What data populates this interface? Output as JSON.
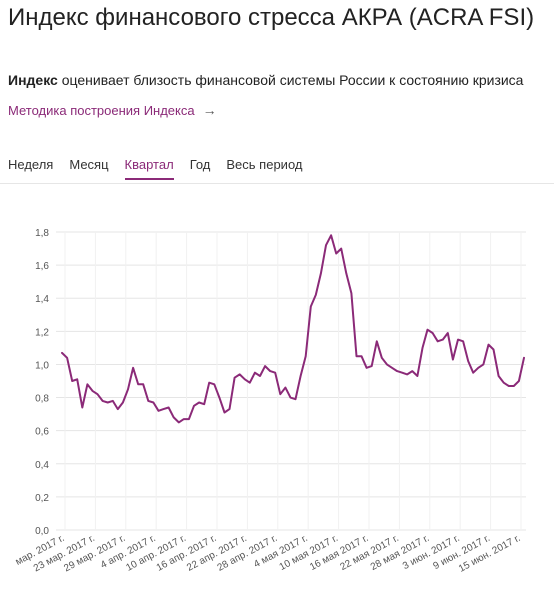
{
  "header": {
    "title": "Индекс финансового стресса АКРА (ACRA FSI)"
  },
  "intro": {
    "bold": "Индекс",
    "text": " оценивает близость финансовой системы России к состоянию кризиса"
  },
  "method_link": {
    "label": "Методика построения Индекса",
    "arrow": "→"
  },
  "tabs": [
    {
      "label": "Неделя",
      "active": false
    },
    {
      "label": "Месяц",
      "active": false
    },
    {
      "label": "Квартал",
      "active": true
    },
    {
      "label": "Год",
      "active": false
    },
    {
      "label": "Весь период",
      "active": false
    }
  ],
  "colors": {
    "accent": "#8b2a78",
    "line": "#8b2a78",
    "grid": "#e5e5e5"
  },
  "chart_data": {
    "type": "line",
    "title": "",
    "xlabel": "",
    "ylabel": "",
    "ylim": [
      0,
      1.8
    ],
    "yticks": [
      "0,0",
      "0,2",
      "0,4",
      "0,6",
      "0,8",
      "1,0",
      "1,2",
      "1,4",
      "1,6",
      "1,8"
    ],
    "grid": true,
    "xticks": [
      "мар. 2017 г.",
      "23 мар. 2017 г.",
      "29 мар. 2017 г.",
      "4 апр. 2017 г.",
      "10 апр. 2017 г.",
      "16 апр. 2017 г.",
      "22 апр. 2017 г.",
      "28 апр. 2017 г.",
      "4 мая 2017 г.",
      "10 мая 2017 г.",
      "16 мая 2017 г.",
      "22 мая 2017 г.",
      "28 мая 2017 г.",
      "3 июн. 2017 г.",
      "9 июн. 2017 г.",
      "15 июн. 2017 г."
    ],
    "series": [
      {
        "values": [
          1.07,
          1.04,
          0.9,
          0.91,
          0.74,
          0.88,
          0.84,
          0.82,
          0.78,
          0.77,
          0.78,
          0.73,
          0.77,
          0.85,
          0.98,
          0.88,
          0.88,
          0.78,
          0.77,
          0.72,
          0.73,
          0.74,
          0.68,
          0.65,
          0.67,
          0.67,
          0.75,
          0.77,
          0.76,
          0.89,
          0.88,
          0.8,
          0.71,
          0.73,
          0.92,
          0.94,
          0.91,
          0.89,
          0.95,
          0.93,
          0.99,
          0.96,
          0.95,
          0.82,
          0.86,
          0.8,
          0.79,
          0.93,
          1.05,
          1.35,
          1.42,
          1.55,
          1.72,
          1.78,
          1.67,
          1.7,
          1.55,
          1.43,
          1.05,
          1.05,
          0.98,
          0.99,
          1.14,
          1.04,
          1.0,
          0.98,
          0.96,
          0.95,
          0.94,
          0.96,
          0.93,
          1.1,
          1.21,
          1.19,
          1.14,
          1.15,
          1.19,
          1.03,
          1.15,
          1.14,
          1.02,
          0.95,
          0.98,
          1.0,
          1.12,
          1.09,
          0.93,
          0.89,
          0.87,
          0.87,
          0.9,
          1.04
        ]
      }
    ]
  }
}
